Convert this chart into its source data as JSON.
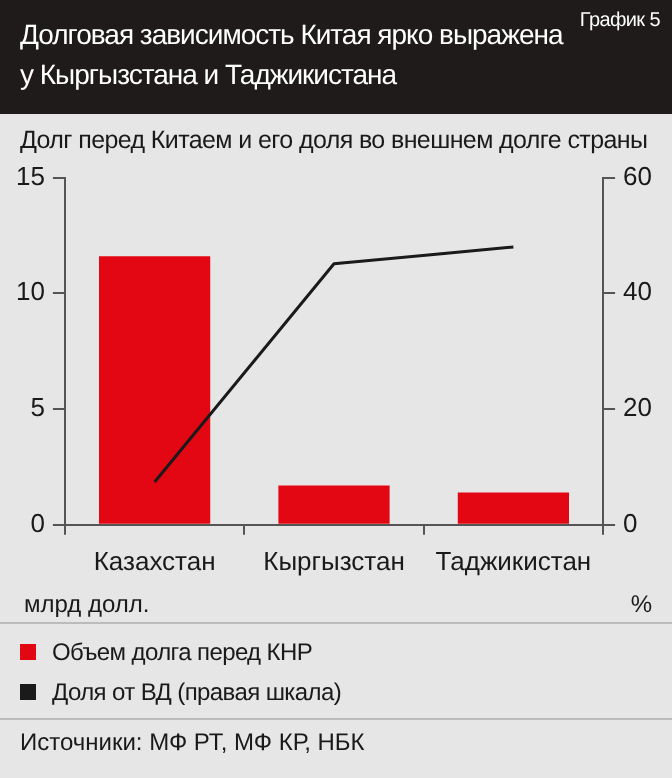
{
  "chart_data": {
    "type": "bar",
    "title": "Долговая зависимость Китая ярко выражена у Кыргызстана и Таджикистана",
    "subtitle": "Долг перед Китаем и его доля во внешнем долге страны",
    "annotations": [
      "График 5",
      "Источники: МФ РТ, МФ КР, НБК"
    ],
    "ylabel": "млрд долл.",
    "y2label": "%",
    "categories": [
      "Казахстан",
      "Кыргызстан",
      "Таджикистан"
    ],
    "series": [
      {
        "name": "Объем долга перед КНР",
        "color": "#e30613",
        "values": [
          11.6,
          1.7,
          1.4
        ]
      },
      {
        "name": "Доля от ВД (правая шкала)",
        "type": "line",
        "axis": "y2",
        "color": "#1a1a1a",
        "values": [
          7.4,
          45.1,
          48
        ]
      }
    ],
    "ylim": [
      0,
      15
    ],
    "yticks": [
      0,
      5,
      10,
      15
    ],
    "y2lim": [
      0,
      60
    ],
    "y2ticks": [
      0,
      20,
      40,
      60
    ],
    "grid": false,
    "legend": "bottom",
    "marker": "none",
    "line_style": "solid"
  }
}
